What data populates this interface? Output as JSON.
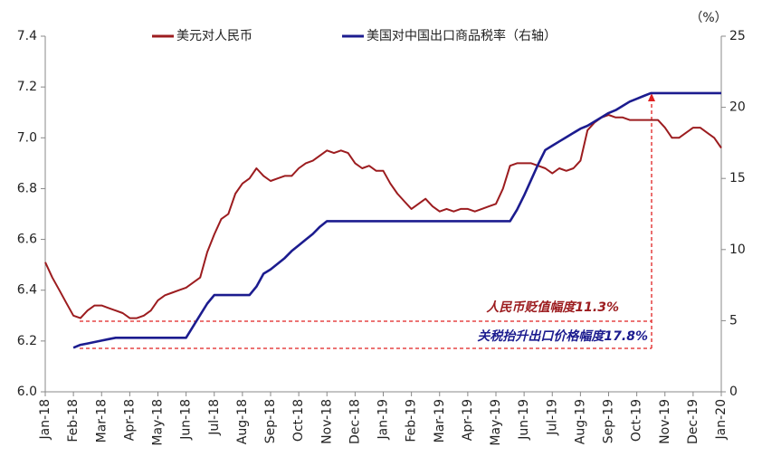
{
  "chart_data": {
    "type": "line",
    "categories": [
      "Jan-18",
      null,
      null,
      null,
      "Feb-18",
      null,
      null,
      null,
      "Mar-18",
      null,
      null,
      null,
      "Apr-18",
      null,
      null,
      null,
      "May-18",
      null,
      null,
      null,
      "Jun-18",
      null,
      null,
      null,
      "Jul-18",
      null,
      null,
      null,
      "Aug-18",
      null,
      null,
      null,
      "Sep-18",
      null,
      null,
      null,
      "Oct-18",
      null,
      null,
      null,
      "Nov-18",
      null,
      null,
      null,
      "Dec-18",
      null,
      null,
      null,
      "Jan-19",
      null,
      null,
      null,
      "Feb-19",
      null,
      null,
      null,
      "Mar-19",
      null,
      null,
      null,
      "Apr-19",
      null,
      null,
      null,
      "May-19",
      null,
      null,
      null,
      "Jun-19",
      null,
      null,
      null,
      "Jul-19",
      null,
      null,
      null,
      "Aug-19",
      null,
      null,
      null,
      "Sep-19",
      null,
      null,
      null,
      "Oct-19",
      null,
      null,
      null,
      "Nov-19",
      null,
      null,
      null,
      "Dec-19",
      null,
      null,
      null,
      "Jan-20"
    ],
    "series": [
      {
        "name": "美元对人民币",
        "color": "#9c1c1f",
        "values": [
          6.51,
          6.45,
          6.4,
          6.35,
          6.3,
          6.29,
          6.32,
          6.34,
          6.34,
          6.33,
          6.32,
          6.31,
          6.29,
          6.29,
          6.3,
          6.32,
          6.36,
          6.38,
          6.39,
          6.4,
          6.41,
          6.43,
          6.45,
          6.55,
          6.62,
          6.68,
          6.7,
          6.78,
          6.82,
          6.84,
          6.88,
          6.85,
          6.83,
          6.84,
          6.85,
          6.85,
          6.88,
          6.9,
          6.91,
          6.93,
          6.95,
          6.94,
          6.95,
          6.94,
          6.9,
          6.88,
          6.89,
          6.87,
          6.87,
          6.82,
          6.78,
          6.75,
          6.72,
          6.74,
          6.76,
          6.73,
          6.71,
          6.72,
          6.71,
          6.72,
          6.72,
          6.71,
          6.72,
          6.73,
          6.74,
          6.8,
          6.89,
          6.9,
          6.9,
          6.9,
          6.89,
          6.88,
          6.86,
          6.88,
          6.87,
          6.88,
          6.91,
          7.03,
          7.06,
          7.08,
          7.09,
          7.08,
          7.08,
          7.07,
          7.07,
          7.07,
          7.07,
          7.07,
          7.04,
          7.0,
          7.0,
          7.02,
          7.04,
          7.04,
          7.02,
          7.0,
          6.96
        ]
      },
      {
        "name": "美国对中国出口商品税率（右轴）",
        "color": "#1c1c8f",
        "axis": "y2",
        "values": [
          null,
          null,
          null,
          null,
          3.1,
          3.3,
          3.4,
          3.5,
          3.6,
          3.7,
          3.8,
          3.8,
          3.8,
          3.8,
          3.8,
          3.8,
          3.8,
          3.8,
          3.8,
          3.8,
          3.8,
          4.6,
          5.4,
          6.2,
          6.8,
          6.8,
          6.8,
          6.8,
          6.8,
          6.8,
          7.4,
          8.3,
          8.6,
          9.0,
          9.4,
          9.9,
          10.3,
          10.7,
          11.1,
          11.6,
          12,
          12,
          12,
          12,
          12,
          12,
          12,
          12,
          12,
          12,
          12,
          12,
          12,
          12,
          12,
          12,
          12,
          12,
          12,
          12,
          12,
          12,
          12,
          12,
          12,
          12,
          12,
          12.8,
          13.8,
          14.9,
          16.0,
          17.0,
          17.3,
          17.6,
          17.9,
          18.2,
          18.5,
          18.7,
          19.0,
          19.3,
          19.6,
          19.8,
          20.1,
          20.4,
          20.6,
          20.8,
          21,
          21,
          21,
          21,
          21,
          21,
          21,
          21,
          21,
          21,
          21
        ]
      }
    ],
    "ylim": [
      6.0,
      7.4
    ],
    "yticks": [
      {
        "value": 6,
        "label": "6.0"
      },
      6.2,
      6.4,
      6.6,
      6.8,
      {
        "value": 7,
        "label": "7.0"
      },
      7.2,
      7.4
    ],
    "y2lim": [
      0,
      25
    ],
    "y2ticks": [
      0,
      5,
      10,
      15,
      20,
      25
    ],
    "y2_unit": "（%）",
    "annotations": [
      "人民币贬值幅度11.3%",
      "关税抬升出口价格幅度17.8%"
    ]
  }
}
